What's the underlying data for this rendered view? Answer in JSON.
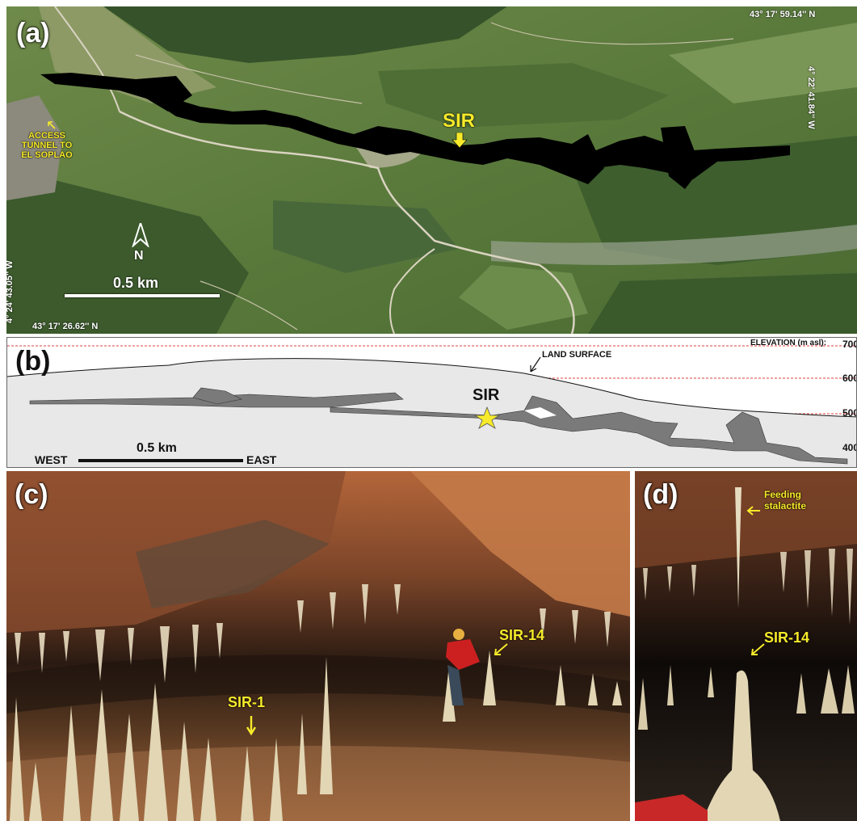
{
  "panel_a": {
    "label": "(a)",
    "coord_top_right": "43° 17' 59.14'' N",
    "coord_right_vertical": "4° 22' 41.84'' W",
    "coord_left_vertical": "4° 24' 43.05'' W",
    "coord_bottom_left": "43° 17' 26.62'' N",
    "sir_label": "SIR",
    "access_line1": "ACCESS",
    "access_line2": "TUNNEL TO",
    "access_line3": "EL SOPLAO",
    "north_label": "N",
    "scale_label": "0.5 km"
  },
  "panel_b": {
    "label": "(b)",
    "elevation_title": "ELEVATION (m asl):",
    "elev_700": "700",
    "elev_600": "600",
    "elev_500": "500",
    "elev_400": "400",
    "land_surface": "LAND SURFACE",
    "sir_label": "SIR",
    "west": "WEST",
    "east": "EAST",
    "scale_label": "0.5 km"
  },
  "panel_c": {
    "label": "(c)",
    "sir1": "SIR-1",
    "sir14": "SIR-14"
  },
  "panel_d": {
    "label": "(d)",
    "feeding_line1": "Feeding",
    "feeding_line2": "stalactite",
    "sir14": "SIR-14"
  },
  "colors": {
    "annotation_yellow": "#f6ea2a",
    "profile_gray": "#7a7a7a",
    "elevation_line": "#e04040"
  }
}
